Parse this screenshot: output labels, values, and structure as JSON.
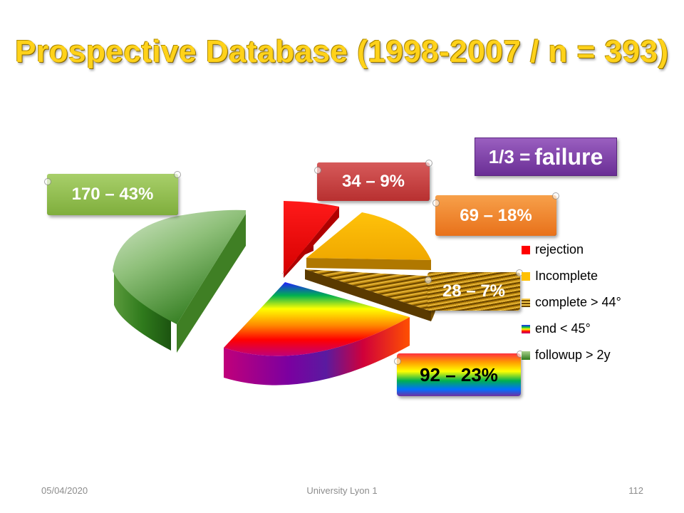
{
  "slide": {
    "title": "Prospective Database (1998-2007 / n = 393)",
    "failure_note_a": "1/3 =",
    "failure_note_b": "failure"
  },
  "colors": {
    "title": "#ffd21a",
    "rejection": "#ff0000",
    "incomplete": "#ffc000",
    "complete": "#b8860b",
    "followup": "#4a8f2a",
    "failure_box": "#7030a0"
  },
  "chart_data": {
    "type": "pie",
    "title": "",
    "slices": [
      {
        "label": "rejection",
        "value": 34,
        "percent": 9,
        "data_label": "34 – 9%"
      },
      {
        "label": "Incomplete",
        "value": 69,
        "percent": 18,
        "data_label": "69 – 18%"
      },
      {
        "label": "complete > 44°",
        "value": 28,
        "percent": 7,
        "data_label": "28 – 7%"
      },
      {
        "label": "end < 45°",
        "value": 92,
        "percent": 23,
        "data_label": "92 – 23%"
      },
      {
        "label": "followup > 2y",
        "value": 170,
        "percent": 43,
        "data_label": "170 – 43%"
      }
    ],
    "legend_position": "right",
    "style": "3d exploded pie"
  },
  "footer": {
    "date": "05/04/2020",
    "center": "University Lyon 1",
    "page": "112"
  }
}
